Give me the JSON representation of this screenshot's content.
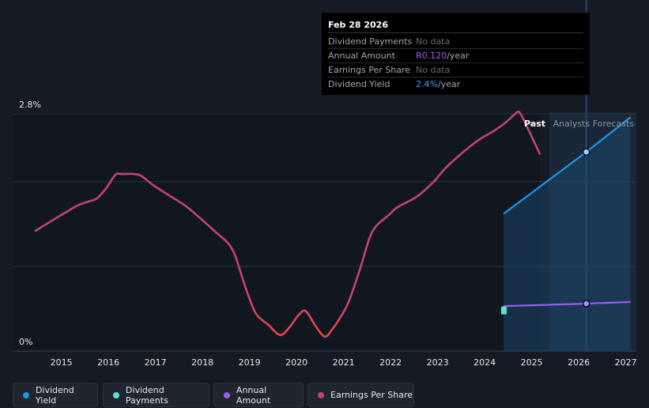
{
  "colors": {
    "dividend_yield": "#2394e8",
    "dividend_payments": "#5fe0c8",
    "annual_amount": "#9b5cf0",
    "earnings_per_share": "#c43f7c",
    "eps_low": "#e04848"
  },
  "tooltip": {
    "date": "Feb 28 2026",
    "rows": [
      {
        "label": "Dividend Payments",
        "value": "No data",
        "unit": ""
      },
      {
        "label": "Annual Amount",
        "value": "R0.120",
        "unit": "/year"
      },
      {
        "label": "Earnings Per Share",
        "value": "No data",
        "unit": ""
      },
      {
        "label": "Dividend Yield",
        "value": "2.4%",
        "unit": "/year"
      }
    ]
  },
  "labels": {
    "past": "Past",
    "forecast": "Analysts Forecasts"
  },
  "legend": [
    {
      "label": "Dividend Yield",
      "color": "#2394e8"
    },
    {
      "label": "Dividend Payments",
      "color": "#5fe0c8"
    },
    {
      "label": "Annual Amount",
      "color": "#9b5cf0"
    },
    {
      "label": "Earnings Per Share",
      "color": "#c43f7c"
    }
  ],
  "chart_data": {
    "type": "line",
    "title": "",
    "xlabel": "",
    "ylabel": "",
    "ylim": [
      0,
      2.8
    ],
    "y_ticks": [
      {
        "value": 2.8,
        "label": "2.8%"
      },
      {
        "value": 0,
        "label": "0%"
      }
    ],
    "xlim": [
      2014.4,
      2027.1
    ],
    "x_ticks": [
      2015,
      2016,
      2017,
      2018,
      2019,
      2020,
      2021,
      2022,
      2023,
      2024,
      2025,
      2026,
      2027
    ],
    "x_tick_labels": [
      "2015",
      "2016",
      "2017",
      "2018",
      "2019",
      "2020",
      "2021",
      "2022",
      "2023",
      "2024",
      "2025",
      "2026",
      "2027"
    ],
    "past_end": 2025.17,
    "forecast_start": 2025.37,
    "cursor_x": 2026.16,
    "series": [
      {
        "name": "Dividend Yield",
        "color": "#2394e8",
        "points": [
          [
            2024.4,
            1.62
          ],
          [
            2026.16,
            2.35
          ],
          [
            2027.1,
            2.76
          ]
        ],
        "markers": [
          2026.16
        ]
      },
      {
        "name": "Dividend Payments",
        "color": "#5fe0c8",
        "points": [
          [
            2024.4,
            0.48
          ]
        ]
      },
      {
        "name": "Annual Amount",
        "color": "#9b5cf0",
        "points": [
          [
            2024.4,
            0.53
          ],
          [
            2026.16,
            0.56
          ],
          [
            2027.1,
            0.58
          ]
        ],
        "markers": [
          2026.16
        ]
      },
      {
        "name": "Earnings Per Share",
        "color": "#c43f7c",
        "points": [
          [
            2014.45,
            1.42
          ],
          [
            2014.8,
            1.54
          ],
          [
            2015.1,
            1.64
          ],
          [
            2015.35,
            1.72
          ],
          [
            2015.6,
            1.77
          ],
          [
            2015.75,
            1.8
          ],
          [
            2015.95,
            1.92
          ],
          [
            2016.15,
            2.08
          ],
          [
            2016.3,
            2.09
          ],
          [
            2016.65,
            2.08
          ],
          [
            2016.95,
            1.96
          ],
          [
            2017.4,
            1.8
          ],
          [
            2017.65,
            1.71
          ],
          [
            2017.95,
            1.57
          ],
          [
            2018.25,
            1.42
          ],
          [
            2018.55,
            1.27
          ],
          [
            2018.7,
            1.12
          ],
          [
            2018.85,
            0.86
          ],
          [
            2019.0,
            0.62
          ],
          [
            2019.15,
            0.43
          ],
          [
            2019.4,
            0.31
          ],
          [
            2019.65,
            0.19
          ],
          [
            2019.85,
            0.28
          ],
          [
            2020.05,
            0.43
          ],
          [
            2020.2,
            0.47
          ],
          [
            2020.4,
            0.3
          ],
          [
            2020.6,
            0.17
          ],
          [
            2020.75,
            0.25
          ],
          [
            2020.9,
            0.37
          ],
          [
            2021.1,
            0.57
          ],
          [
            2021.35,
            0.97
          ],
          [
            2021.55,
            1.33
          ],
          [
            2021.7,
            1.48
          ],
          [
            2021.95,
            1.6
          ],
          [
            2022.15,
            1.7
          ],
          [
            2022.55,
            1.82
          ],
          [
            2022.9,
            1.99
          ],
          [
            2023.15,
            2.15
          ],
          [
            2023.4,
            2.28
          ],
          [
            2023.7,
            2.42
          ],
          [
            2023.95,
            2.52
          ],
          [
            2024.2,
            2.6
          ],
          [
            2024.45,
            2.7
          ],
          [
            2024.65,
            2.8
          ],
          [
            2024.75,
            2.81
          ],
          [
            2024.95,
            2.59
          ],
          [
            2025.17,
            2.33
          ]
        ]
      }
    ]
  }
}
